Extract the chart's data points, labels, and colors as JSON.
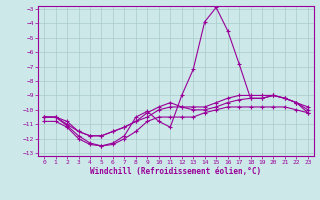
{
  "xlabel": "Windchill (Refroidissement éolien,°C)",
  "xlim": [
    -0.5,
    23.5
  ],
  "ylim": [
    -13.2,
    -2.8
  ],
  "yticks": [
    -13,
    -12,
    -11,
    -10,
    -9,
    -8,
    -7,
    -6,
    -5,
    -4,
    -3
  ],
  "xticks": [
    0,
    1,
    2,
    3,
    4,
    5,
    6,
    7,
    8,
    9,
    10,
    11,
    12,
    13,
    14,
    15,
    16,
    17,
    18,
    19,
    20,
    21,
    22,
    23
  ],
  "bg_color": "#cce8e8",
  "grid_color": "#aacccc",
  "line_color": "#990099",
  "line1": [
    -10.5,
    -10.5,
    -11.1,
    -11.8,
    -12.3,
    -12.5,
    -12.3,
    -11.8,
    -10.5,
    -10.1,
    -10.8,
    -11.2,
    -9.0,
    -7.2,
    -3.9,
    -2.9,
    -4.5,
    -6.8,
    -9.2,
    -9.2,
    -9.0,
    -9.2,
    -9.5,
    -10.2
  ],
  "line2": [
    -10.5,
    -10.5,
    -11.0,
    -11.5,
    -11.8,
    -11.8,
    -11.5,
    -11.2,
    -10.8,
    -10.2,
    -9.8,
    -9.5,
    -9.8,
    -10.0,
    -10.0,
    -9.8,
    -9.5,
    -9.3,
    -9.2,
    -9.2,
    -9.0,
    -9.2,
    -9.5,
    -9.8
  ],
  "line3": [
    -10.8,
    -10.8,
    -11.2,
    -12.0,
    -12.4,
    -12.5,
    -12.4,
    -12.0,
    -11.5,
    -10.8,
    -10.5,
    -10.5,
    -10.5,
    -10.5,
    -10.2,
    -10.0,
    -9.8,
    -9.8,
    -9.8,
    -9.8,
    -9.8,
    -9.8,
    -10.0,
    -10.2
  ],
  "line4": [
    -10.5,
    -10.5,
    -10.8,
    -11.5,
    -11.8,
    -11.8,
    -11.5,
    -11.2,
    -10.8,
    -10.5,
    -10.0,
    -9.8,
    -9.8,
    -9.8,
    -9.8,
    -9.5,
    -9.2,
    -9.0,
    -9.0,
    -9.0,
    -9.0,
    -9.2,
    -9.5,
    -10.0
  ]
}
